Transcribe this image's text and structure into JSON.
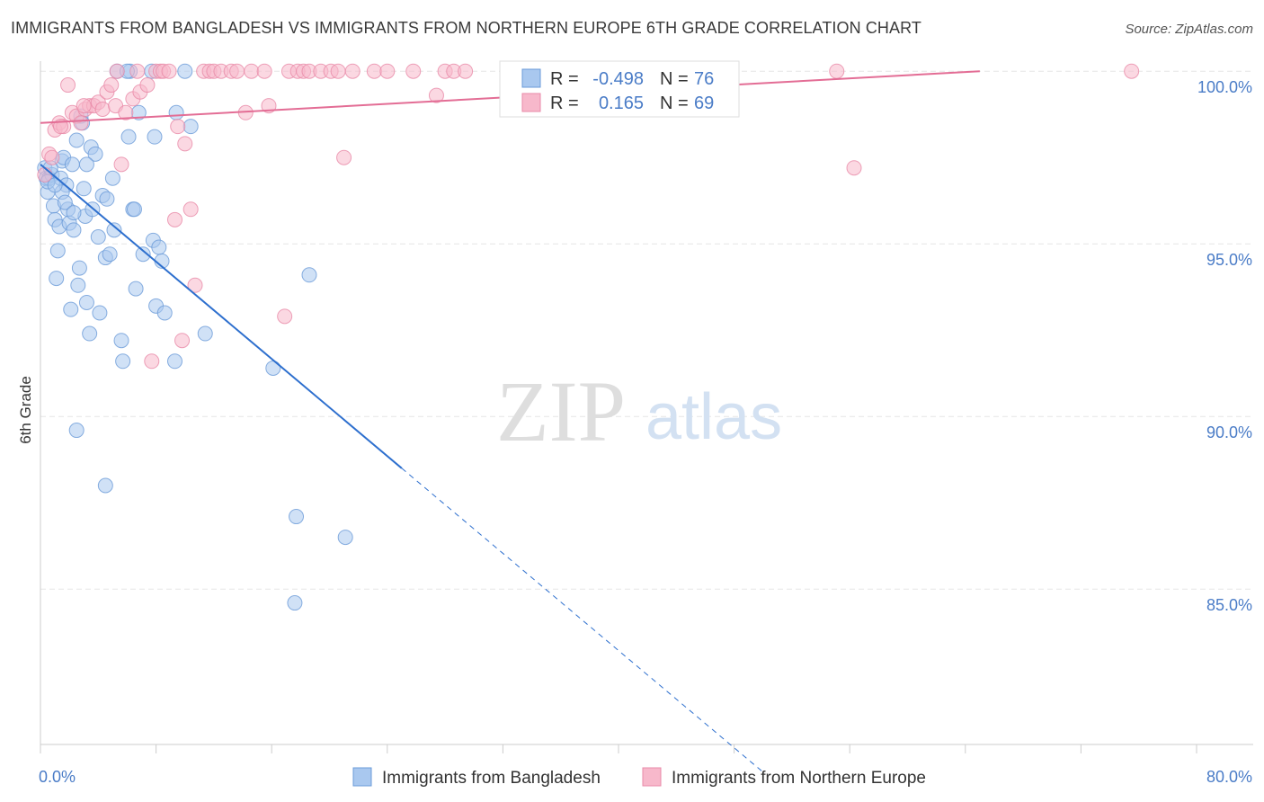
{
  "header": {
    "title": "IMMIGRANTS FROM BANGLADESH VS IMMIGRANTS FROM NORTHERN EUROPE 6TH GRADE CORRELATION CHART",
    "source": "Source: ZipAtlas.com"
  },
  "watermark": {
    "zip": "ZIP",
    "atlas": "atlas"
  },
  "legend": {
    "r_label": "R =",
    "n_label": "N =",
    "rows": [
      {
        "r": "-0.498",
        "n": "76",
        "color": "#a9c8ef",
        "stroke": "#6b9bd8"
      },
      {
        "r": "0.165",
        "n": "69",
        "color": "#f7b8cb",
        "stroke": "#e88aa8"
      }
    ]
  },
  "chart_data": {
    "type": "scatter",
    "title": "IMMIGRANTS FROM BANGLADESH VS IMMIGRANTS FROM NORTHERN EUROPE 6TH GRADE CORRELATION CHART",
    "ylabel": "6th Grade",
    "xlabel": "",
    "xlim": [
      0,
      80
    ],
    "ylim": [
      80.5,
      100.5
    ],
    "x_tick_labels": [
      "0.0%",
      "80.0%"
    ],
    "y_ticks": [
      100,
      95,
      90,
      85
    ],
    "y_tick_labels": [
      "100.0%",
      "95.0%",
      "90.0%",
      "85.0%"
    ],
    "grid": true,
    "legend_position": "bottom",
    "series": [
      {
        "name": "Immigrants from Bangladesh",
        "color": "#a9c8ef",
        "stroke": "#6b9bd8",
        "line_color": "#2d6fce",
        "trend": {
          "x0": 0.0,
          "y0": 97.3,
          "x1": 25.0,
          "y1": 88.5,
          "x_dash_end": 50.0
        },
        "points": [
          [
            0.3,
            97.2
          ],
          [
            0.4,
            96.9
          ],
          [
            0.5,
            96.5
          ],
          [
            0.6,
            96.9
          ],
          [
            0.8,
            97.0
          ],
          [
            0.9,
            96.1
          ],
          [
            1.0,
            95.7
          ],
          [
            1.2,
            94.8
          ],
          [
            1.1,
            94.0
          ],
          [
            1.3,
            95.5
          ],
          [
            1.4,
            96.9
          ],
          [
            1.5,
            97.4
          ],
          [
            1.6,
            97.5
          ],
          [
            1.8,
            96.7
          ],
          [
            1.9,
            96.0
          ],
          [
            2.0,
            95.6
          ],
          [
            2.1,
            93.1
          ],
          [
            2.2,
            97.3
          ],
          [
            2.3,
            95.4
          ],
          [
            2.5,
            98.0
          ],
          [
            2.6,
            93.8
          ],
          [
            2.7,
            94.3
          ],
          [
            2.8,
            98.7
          ],
          [
            2.9,
            98.5
          ],
          [
            3.0,
            96.6
          ],
          [
            3.1,
            95.8
          ],
          [
            3.2,
            93.3
          ],
          [
            3.4,
            92.4
          ],
          [
            3.5,
            97.8
          ],
          [
            3.6,
            96.0
          ],
          [
            3.8,
            97.6
          ],
          [
            4.0,
            95.2
          ],
          [
            4.1,
            93.0
          ],
          [
            4.3,
            96.4
          ],
          [
            4.5,
            94.6
          ],
          [
            4.6,
            96.3
          ],
          [
            4.8,
            94.7
          ],
          [
            5.1,
            95.4
          ],
          [
            5.3,
            100.0
          ],
          [
            5.6,
            92.2
          ],
          [
            5.7,
            91.6
          ],
          [
            6.1,
            98.1
          ],
          [
            6.2,
            100.0
          ],
          [
            6.4,
            96.0
          ],
          [
            6.5,
            96.0
          ],
          [
            6.6,
            93.7
          ],
          [
            6.8,
            98.8
          ],
          [
            7.1,
            94.7
          ],
          [
            7.7,
            100.0
          ],
          [
            7.8,
            95.1
          ],
          [
            7.9,
            98.1
          ],
          [
            8.0,
            93.2
          ],
          [
            8.2,
            94.9
          ],
          [
            8.4,
            94.5
          ],
          [
            8.6,
            93.0
          ],
          [
            9.3,
            91.6
          ],
          [
            9.4,
            98.8
          ],
          [
            10.0,
            100.0
          ],
          [
            10.4,
            98.4
          ],
          [
            11.4,
            92.4
          ],
          [
            16.1,
            91.4
          ],
          [
            17.6,
            84.6
          ],
          [
            17.7,
            87.1
          ],
          [
            18.6,
            94.1
          ],
          [
            21.1,
            86.5
          ],
          [
            2.5,
            89.6
          ],
          [
            4.5,
            88.0
          ],
          [
            1.5,
            96.5
          ],
          [
            0.7,
            97.2
          ],
          [
            0.5,
            96.8
          ],
          [
            1.0,
            96.7
          ],
          [
            1.7,
            96.2
          ],
          [
            2.3,
            95.9
          ],
          [
            3.2,
            97.3
          ],
          [
            5.0,
            96.9
          ],
          [
            6.0,
            100.0
          ]
        ]
      },
      {
        "name": "Immigrants from Northern Europe",
        "color": "#f7b8cb",
        "stroke": "#e88aa8",
        "line_color": "#e36d95",
        "trend": {
          "x0": 0.0,
          "y0": 98.5,
          "x1": 65.0,
          "y1": 100.0
        },
        "points": [
          [
            0.3,
            97.0
          ],
          [
            0.6,
            97.6
          ],
          [
            1.0,
            98.3
          ],
          [
            1.3,
            98.5
          ],
          [
            1.6,
            98.4
          ],
          [
            1.9,
            99.6
          ],
          [
            2.2,
            98.8
          ],
          [
            2.5,
            98.7
          ],
          [
            2.8,
            98.5
          ],
          [
            3.1,
            98.9
          ],
          [
            3.4,
            99.0
          ],
          [
            3.7,
            99.0
          ],
          [
            4.0,
            99.1
          ],
          [
            4.3,
            98.9
          ],
          [
            4.6,
            99.4
          ],
          [
            4.9,
            99.6
          ],
          [
            5.2,
            99.0
          ],
          [
            5.6,
            97.3
          ],
          [
            5.9,
            98.8
          ],
          [
            6.4,
            99.2
          ],
          [
            6.7,
            100.0
          ],
          [
            6.9,
            99.4
          ],
          [
            7.4,
            99.6
          ],
          [
            7.7,
            91.6
          ],
          [
            8.0,
            100.0
          ],
          [
            8.3,
            100.0
          ],
          [
            8.5,
            100.0
          ],
          [
            8.9,
            100.0
          ],
          [
            9.3,
            95.7
          ],
          [
            9.5,
            98.4
          ],
          [
            9.8,
            92.2
          ],
          [
            10.0,
            97.9
          ],
          [
            10.4,
            96.0
          ],
          [
            10.7,
            93.8
          ],
          [
            11.3,
            100.0
          ],
          [
            11.7,
            100.0
          ],
          [
            12.0,
            100.0
          ],
          [
            12.5,
            100.0
          ],
          [
            13.2,
            100.0
          ],
          [
            13.6,
            100.0
          ],
          [
            14.2,
            98.8
          ],
          [
            14.6,
            100.0
          ],
          [
            15.5,
            100.0
          ],
          [
            15.8,
            99.0
          ],
          [
            16.9,
            92.9
          ],
          [
            17.2,
            100.0
          ],
          [
            17.8,
            100.0
          ],
          [
            18.2,
            100.0
          ],
          [
            18.6,
            100.0
          ],
          [
            19.4,
            100.0
          ],
          [
            20.1,
            100.0
          ],
          [
            20.6,
            100.0
          ],
          [
            21.0,
            97.5
          ],
          [
            21.6,
            100.0
          ],
          [
            23.1,
            100.0
          ],
          [
            24.0,
            100.0
          ],
          [
            25.8,
            100.0
          ],
          [
            27.4,
            99.3
          ],
          [
            28.0,
            100.0
          ],
          [
            28.6,
            100.0
          ],
          [
            29.4,
            100.0
          ],
          [
            36.2,
            100.0
          ],
          [
            55.1,
            100.0
          ],
          [
            56.3,
            97.2
          ],
          [
            75.5,
            100.0
          ],
          [
            0.8,
            97.5
          ],
          [
            1.4,
            98.4
          ],
          [
            3.0,
            99.0
          ],
          [
            5.3,
            100.0
          ]
        ]
      }
    ]
  }
}
